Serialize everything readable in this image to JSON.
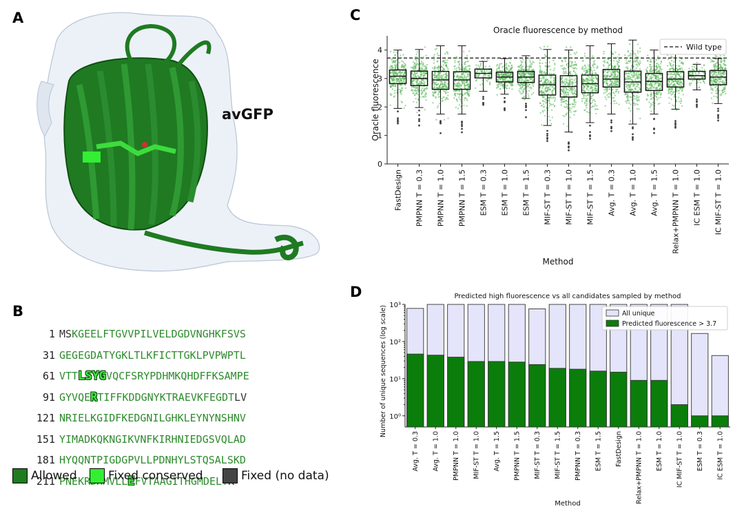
{
  "panels": {
    "a": "A",
    "b": "B",
    "c": "C",
    "d": "D"
  },
  "panel_a": {
    "label": "avGFP"
  },
  "panel_b": {
    "rows": [
      {
        "num": "1",
        "segments": [
          {
            "t": "MS",
            "c": "fixeddata"
          },
          {
            "t": "KGEELFTGVVPILVELDGDVNGHKFSVS",
            "c": "allowed"
          }
        ]
      },
      {
        "num": "31",
        "segments": [
          {
            "t": "GEGEGDATYGKLTLKFICTTGKLPVPWPTL",
            "c": "allowed"
          }
        ]
      },
      {
        "num": "61",
        "segments": [
          {
            "t": "VTT",
            "c": "allowed"
          },
          {
            "t": "LSYG",
            "c": "fixedcons"
          },
          {
            "t": "VQCFSRYPDHMKQHDFFKSAMPE",
            "c": "allowed"
          }
        ]
      },
      {
        "num": "91",
        "segments": [
          {
            "t": "GYVQE",
            "c": "allowed"
          },
          {
            "t": "R",
            "c": "fixedcons"
          },
          {
            "t": "TIFFKDDGNYKTRAEVKFEGDT",
            "c": "allowed"
          },
          {
            "t": "LV",
            "c": "fixeddata"
          }
        ]
      },
      {
        "num": "121",
        "segments": [
          {
            "t": "NRIELKGIDFKEDGNILGHKLEYNYNSHNV",
            "c": "allowed"
          }
        ]
      },
      {
        "num": "151",
        "segments": [
          {
            "t": "YIMADKQKNGIKVNFKIRHNIEDGSVQLAD",
            "c": "allowed"
          }
        ]
      },
      {
        "num": "181",
        "segments": [
          {
            "t": "HYQQNTPIGDGPVLLPDNHYLSTQSALSKD",
            "c": "allowed"
          }
        ]
      },
      {
        "num": "211",
        "segments": [
          {
            "t": "PNEKRDHMVLL",
            "c": "allowed"
          },
          {
            "t": "E",
            "c": "fixedcons"
          },
          {
            "t": "FVTAAGITHGMDELY",
            "c": "allowed"
          },
          {
            "t": "K",
            "c": "fixeddata"
          }
        ]
      }
    ],
    "legend": [
      {
        "label": "Allowed",
        "color": "#1e7b1e"
      },
      {
        "label": "Fixed conserved",
        "color": "#33ee33"
      },
      {
        "label": "Fixed (no data)",
        "color": "#444444"
      }
    ]
  },
  "chart_data": [
    {
      "type": "box",
      "title": "Oracle fluorescence by method",
      "xlabel": "Method",
      "ylabel": "Oracle fluorescence",
      "ylim": [
        0,
        4.5
      ],
      "yticks": [
        0,
        1,
        2,
        3,
        4
      ],
      "reference_line": {
        "label": "Wild type",
        "value": 3.72
      },
      "grid": false,
      "legend_position": "top-right",
      "point_color": "#5cb85c",
      "categories": [
        "FastDesign",
        "PMPNN T = 0.3",
        "PMPNN T = 1.0",
        "PMPNN T = 1.5",
        "ESM T = 0.3",
        "ESM T = 1.0",
        "ESM T = 1.5",
        "MIF-ST T = 0.3",
        "MIF-ST T = 1.0",
        "MIF-ST T = 1.5",
        "Avg. T = 0.3",
        "Avg. T = 1.0",
        "Avg. T = 1.5",
        "Relax+PMPNN T = 1.0",
        "IC ESM T = 1.0",
        "IC MIF-ST T = 1.0"
      ],
      "boxes": [
        {
          "q1": 2.82,
          "median": 3.08,
          "q3": 3.3,
          "whisker_low": 1.95,
          "whisker_high": 4.0
        },
        {
          "q1": 2.75,
          "median": 3.0,
          "q3": 3.26,
          "whisker_low": 1.98,
          "whisker_high": 4.02
        },
        {
          "q1": 2.62,
          "median": 2.95,
          "q3": 3.25,
          "whisker_low": 1.75,
          "whisker_high": 4.15
        },
        {
          "q1": 2.62,
          "median": 2.95,
          "q3": 3.24,
          "whisker_low": 1.75,
          "whisker_high": 4.15
        },
        {
          "q1": 3.02,
          "median": 3.18,
          "q3": 3.33,
          "whisker_low": 2.55,
          "whisker_high": 3.6
        },
        {
          "q1": 2.88,
          "median": 3.05,
          "q3": 3.22,
          "whisker_low": 2.45,
          "whisker_high": 3.7
        },
        {
          "q1": 2.86,
          "median": 3.05,
          "q3": 3.25,
          "whisker_low": 2.3,
          "whisker_high": 3.8
        },
        {
          "q1": 2.42,
          "median": 2.78,
          "q3": 3.12,
          "whisker_low": 1.35,
          "whisker_high": 4.02
        },
        {
          "q1": 2.35,
          "median": 2.72,
          "q3": 3.1,
          "whisker_low": 1.12,
          "whisker_high": 4.0
        },
        {
          "q1": 2.5,
          "median": 2.82,
          "q3": 3.12,
          "whisker_low": 1.45,
          "whisker_high": 4.15
        },
        {
          "q1": 2.7,
          "median": 2.98,
          "q3": 3.32,
          "whisker_low": 1.75,
          "whisker_high": 4.22
        },
        {
          "q1": 2.52,
          "median": 2.88,
          "q3": 3.26,
          "whisker_low": 1.4,
          "whisker_high": 4.35
        },
        {
          "q1": 2.58,
          "median": 2.9,
          "q3": 3.18,
          "whisker_low": 1.75,
          "whisker_high": 4.0
        },
        {
          "q1": 2.7,
          "median": 2.98,
          "q3": 3.24,
          "whisker_low": 1.92,
          "whisker_high": 3.85
        },
        {
          "q1": 2.98,
          "median": 3.1,
          "q3": 3.25,
          "whisker_low": 2.6,
          "whisker_high": 3.5
        },
        {
          "q1": 2.78,
          "median": 3.05,
          "q3": 3.28,
          "whisker_low": 2.12,
          "whisker_high": 3.7
        }
      ]
    },
    {
      "type": "bar",
      "title": "Predicted high fluorescence vs all candidates sampled by method",
      "xlabel": "Method",
      "ylabel": "Number of unique sequences (log scale)",
      "yscale": "log",
      "ylim": [
        0.5,
        1000
      ],
      "ytick_values": [
        1,
        10,
        100,
        1000
      ],
      "ytick_labels": [
        "10⁰",
        "10¹",
        "10²",
        "10³"
      ],
      "legend_position": "top-right",
      "categories": [
        "Avg. T = 0.3",
        "Avg. T = 1.0",
        "PMPNN T = 1.0",
        "MIF-ST T = 1.0",
        "Avg. T = 1.5",
        "PMPNN T = 1.5",
        "MIF-ST T = 0.3",
        "MIF-ST T = 1.5",
        "PMPNN T = 0.3",
        "ESM T = 1.5",
        "FastDesign",
        "Relax+PMPNN T = 1.0",
        "ESM T = 1.0",
        "IC MIF-ST T = 1.0",
        "ESM T = 0.3",
        "IC ESM T = 1.0"
      ],
      "series": [
        {
          "name": "All unique",
          "color": "#e4e4fa",
          "values": [
            780,
            1000,
            1000,
            1000,
            1000,
            1000,
            760,
            1000,
            1000,
            1000,
            1000,
            1000,
            1000,
            1000,
            165,
            42
          ]
        },
        {
          "name": "Predicted fluorescence > 3.7",
          "color": "#0a7d0a",
          "values": [
            46,
            43,
            38,
            29,
            29,
            28,
            24,
            19,
            18,
            16,
            15,
            9,
            9,
            2,
            1,
            1
          ]
        }
      ]
    }
  ]
}
